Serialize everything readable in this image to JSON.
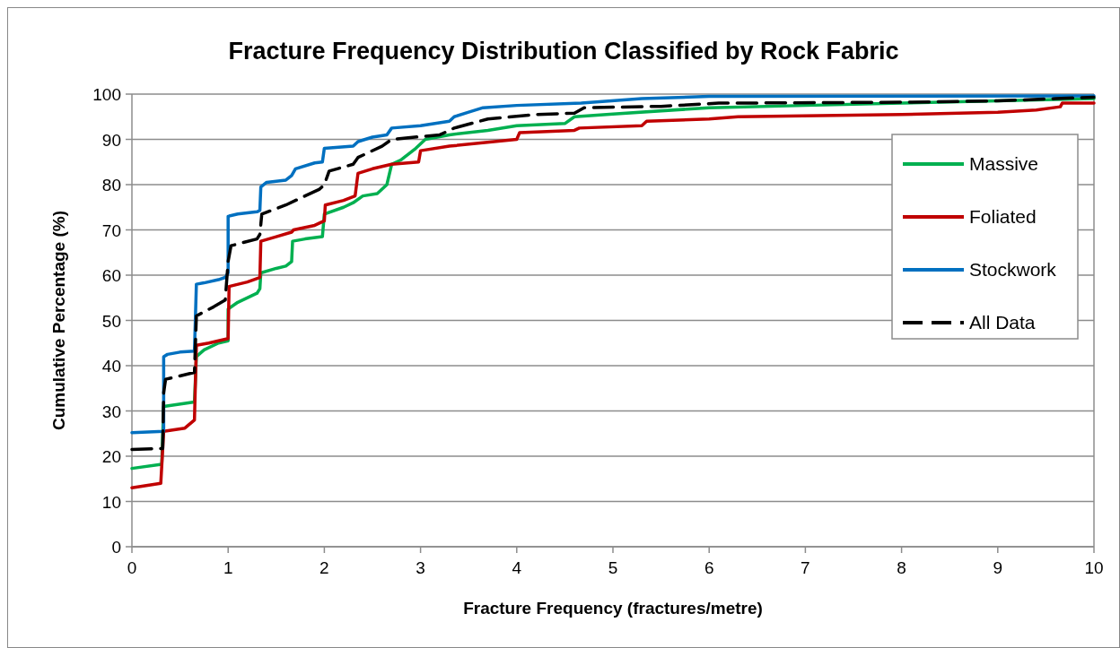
{
  "chart_data": {
    "type": "line",
    "title": "Fracture Frequency Distribution Classified by Rock Fabric",
    "xlabel": "Fracture Frequency (fractures/metre)",
    "ylabel": "Cumulative Percentage (%)",
    "xlim": [
      0,
      10
    ],
    "xticks": [
      0,
      1,
      2,
      3,
      4,
      5,
      6,
      7,
      8,
      9,
      10
    ],
    "ylim": [
      0,
      100
    ],
    "yticks": [
      0,
      10,
      20,
      30,
      40,
      50,
      60,
      70,
      80,
      90,
      100
    ],
    "grid": "y",
    "legend": "right",
    "marker": "none",
    "series": [
      {
        "name": "Massive",
        "color": "#00b050",
        "x": [
          0,
          0.31,
          0.33,
          0.65,
          0.67,
          0.75,
          0.9,
          1.0,
          1.0,
          1.1,
          1.3,
          1.33,
          1.34,
          1.5,
          1.6,
          1.66,
          1.67,
          1.8,
          1.98,
          2.0,
          2.2,
          2.3,
          2.4,
          2.55,
          2.65,
          2.7,
          2.8,
          2.95,
          3.05,
          3.3,
          3.7,
          4,
          4.5,
          4.6,
          5,
          6,
          7,
          8,
          9,
          10
        ],
        "values": [
          17.3,
          18.2,
          31,
          32,
          42,
          43.5,
          45,
          45.5,
          52.5,
          54,
          56,
          57,
          60.5,
          61.5,
          62,
          63,
          67.5,
          68,
          68.5,
          73.5,
          75,
          76,
          77.5,
          78,
          80,
          84.5,
          85.5,
          88,
          90,
          91,
          92,
          93,
          93.5,
          95,
          95.6,
          97,
          97.5,
          98,
          98.5,
          99
        ]
      },
      {
        "name": "Foliated",
        "color": "#c00000",
        "x": [
          0,
          0.3,
          0.33,
          0.55,
          0.65,
          0.67,
          0.8,
          1.0,
          1.01,
          1.2,
          1.33,
          1.34,
          1.5,
          1.66,
          1.68,
          1.9,
          2.0,
          2.01,
          2.2,
          2.32,
          2.35,
          2.5,
          2.7,
          2.98,
          3.0,
          3.3,
          4,
          4.03,
          4.6,
          4.65,
          5.3,
          5.35,
          6,
          6.3,
          8,
          9,
          9.4,
          9.65,
          9.67,
          10
        ],
        "values": [
          13,
          14,
          25.5,
          26.2,
          28,
          44.5,
          45,
          46,
          57.5,
          58.5,
          59.5,
          67.5,
          68.5,
          69.5,
          70,
          71,
          72,
          75.5,
          76.5,
          77.5,
          82.5,
          83.5,
          84.5,
          85,
          87.5,
          88.5,
          90,
          91.5,
          92,
          92.5,
          93,
          94,
          94.5,
          95,
          95.5,
          96,
          96.5,
          97.2,
          98,
          98
        ]
      },
      {
        "name": "Stockwork",
        "color": "#0070c0",
        "x": [
          0,
          0.33,
          0.33,
          0.37,
          0.5,
          0.65,
          0.67,
          0.75,
          0.9,
          0.97,
          1.0,
          1.0,
          1.1,
          1.3,
          1.33,
          1.34,
          1.4,
          1.6,
          1.66,
          1.7,
          1.9,
          1.98,
          2.0,
          2.3,
          2.35,
          2.5,
          2.65,
          2.7,
          3.0,
          3.3,
          3.35,
          3.5,
          3.65,
          4,
          4.67,
          5.3,
          6,
          10
        ],
        "values": [
          25.2,
          25.5,
          42,
          42.5,
          43,
          43.2,
          58,
          58.3,
          59,
          59.5,
          60.5,
          73,
          73.5,
          74,
          74.3,
          79.5,
          80.5,
          81,
          82,
          83.5,
          84.8,
          85,
          88,
          88.5,
          89.5,
          90.5,
          91,
          92.5,
          93,
          94,
          95,
          96,
          97,
          97.5,
          98,
          99,
          99.5,
          99.6
        ]
      },
      {
        "name": "All Data",
        "color": "#000000",
        "line_style": "dashed",
        "x": [
          0,
          0.32,
          0.33,
          0.35,
          0.65,
          0.67,
          0.85,
          0.97,
          1.0,
          1.03,
          1.3,
          1.33,
          1.35,
          1.6,
          1.95,
          2.0,
          2.05,
          2.3,
          2.35,
          2.45,
          2.6,
          2.7,
          3.2,
          3.35,
          3.7,
          4.2,
          4.6,
          4.7,
          5.5,
          6.1,
          8,
          9,
          9.6,
          10
        ],
        "values": [
          21.5,
          21.7,
          34,
          37,
          38.5,
          51,
          53,
          54.5,
          63,
          66.5,
          68,
          69,
          73.5,
          75.5,
          79,
          80,
          83,
          84.5,
          86,
          87,
          88.5,
          90,
          91,
          92.5,
          94.5,
          95.5,
          95.8,
          97,
          97.3,
          98,
          98.2,
          98.5,
          99,
          99.3
        ]
      }
    ]
  }
}
